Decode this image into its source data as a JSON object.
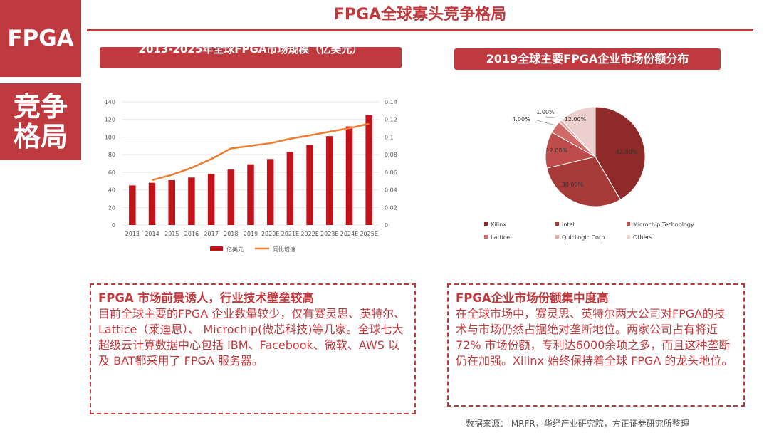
{
  "sidebar": {
    "tag": "FPGA",
    "section_line1": "竞争",
    "section_line2": "格局"
  },
  "page_title": "FPGA全球寡头竞争格局",
  "left_chart_title": "2013-2025年全球FPGA市场规模（亿美元）",
  "right_chart_title": "2019全球主要FPGA企业市场份额分布",
  "chart_data": [
    {
      "type": "bar",
      "categories": [
        "2013",
        "2014",
        "2015",
        "2016",
        "2017",
        "2018",
        "2019",
        "2020E",
        "2021E",
        "2022E",
        "2023E",
        "2024E",
        "2025E"
      ],
      "series": [
        {
          "name": "亿美元",
          "type": "bar",
          "axis": "left",
          "color": "#c0141a",
          "values": [
            45,
            48,
            51,
            54,
            58,
            63,
            69,
            75,
            83,
            91,
            101,
            112,
            125
          ]
        },
        {
          "name": "同比增速",
          "type": "line",
          "axis": "right",
          "color": "#ed7d31",
          "values": [
            null,
            0.051,
            0.057,
            0.065,
            0.075,
            0.087,
            0.09,
            0.093,
            0.098,
            0.102,
            0.106,
            0.11,
            0.115
          ]
        }
      ],
      "ylim": [
        0,
        140
      ],
      "yticks": [
        0,
        20,
        40,
        60,
        80,
        100,
        120,
        140
      ],
      "y2lim": [
        0,
        0.14
      ],
      "y2ticks": [
        0,
        0.02,
        0.04,
        0.06,
        0.08,
        0.1,
        0.12,
        0.14
      ],
      "legend_position": "bottom"
    },
    {
      "type": "pie",
      "labels": [
        "Xilinx",
        "Intel",
        "Microchip Technology",
        "Lattice",
        "QuicLogic Corp",
        "Others"
      ],
      "values": [
        42,
        30,
        12,
        4,
        1,
        12
      ],
      "value_labels": [
        "42.00%",
        "30.00%",
        "12.00%",
        "4.00%",
        "1.00%",
        "12.00%"
      ],
      "colors": [
        "#8e2b2a",
        "#a63a39",
        "#bd4c4a",
        "#d06a68",
        "#e3a7a6",
        "#edcfce"
      ],
      "legend_position": "bottom"
    }
  ],
  "box_left": {
    "heading": "FPGA 市场前景诱人，行业技术壁垒较高",
    "body": "目前全球主要的FPGA 企业数量较少，仅有赛灵思、英特尔、Lattice（莱迪思）、 Microchip(微芯科技)等几家。全球七大超级云计算数据中心包括 IBM、Facebook、微软、AWS 以及 BAT都采用了 FPGA 服务器。"
  },
  "box_right": {
    "heading": "FPGA企业市场份额集中度高",
    "body": "在全球市场中，赛灵思、英特尔两大公司对FPGA的技术与市场仍然占据绝对垄断地位。两家公司占有将近 72% 市场份额，专利达6000余项之多，而且这种垄断仍在加强。Xilinx 始终保持着全球 FPGA 的龙头地位。"
  },
  "source": "数据来源： MRFR，华经产业研究院，方正证券研究所整理"
}
